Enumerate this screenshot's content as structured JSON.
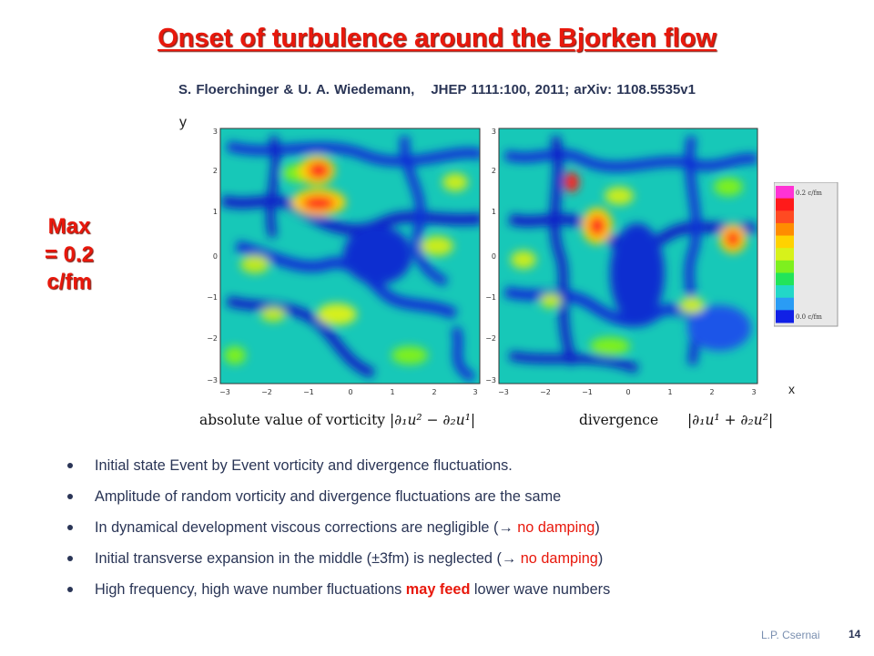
{
  "slide": {
    "title": "Onset of turbulence around the Bjorken flow",
    "subtitle_authors": "S. Floerchinger & U. A. Wiedemann,",
    "subtitle_ref": "JHEP 1111:100, 2011; arXiv: 1108.5535v1",
    "max_line1": "Max",
    "max_line2": "= 0.2",
    "max_line3": "c/fm",
    "author_footer": "L.P. Csernai",
    "page_number": "14"
  },
  "figure": {
    "y_axis_label": "y",
    "x_axis_label": "x",
    "tick_labels": [
      "−3",
      "−2",
      "−1",
      "0",
      "1",
      "2",
      "3"
    ],
    "colorbar_max": "0.2 c/fm",
    "colorbar_min": "0.0 c/fm",
    "colorbar_colors": [
      "#ff33d4",
      "#ff1a1a",
      "#ff4a22",
      "#ff8c00",
      "#ffd200",
      "#d7f21a",
      "#7ef01e",
      "#22e45a",
      "#22d8c8",
      "#2a9cf5",
      "#1020e6"
    ],
    "caption_left_text": "absolute value of vorticity",
    "caption_left_formula": "|∂₁u² − ∂₂u¹|",
    "caption_right_text": "divergence",
    "caption_right_formula": "|∂₁u¹ + ∂₂u²|"
  },
  "bullets": {
    "b1": "Initial state Event by Event  vorticity and divergence fluctuations.",
    "b2": "Amplitude of random vorticity and divergence fluctuations are the same",
    "b3_pre": "In dynamical development viscous corrections are negligible  (",
    "b3_arrow": "→",
    "b3_red": " no damping",
    "b3_post": ")",
    "b4_pre": "Initial transverse expansion in the middle  (±3fm) is neglected (",
    "b4_arrow": "→",
    "b4_red": " no damping",
    "b4_post": ")",
    "b5_pre": "High frequency, high wave number fluctuations ",
    "b5_red": "may feed",
    "b5_post": " lower wave numbers"
  }
}
